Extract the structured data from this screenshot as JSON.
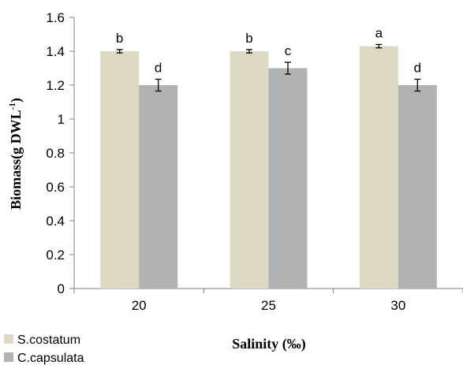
{
  "chart_data": {
    "type": "bar",
    "categories": [
      "20",
      "25",
      "30"
    ],
    "series": [
      {
        "name": "S.costatum",
        "color": "#ddd9c3",
        "values": [
          1.4,
          1.4,
          1.43
        ],
        "errors": [
          0.01,
          0.01,
          0.01
        ],
        "labels": [
          "b",
          "b",
          "a"
        ]
      },
      {
        "name": "C.capsulata",
        "color": "#b2b2b2",
        "values": [
          1.2,
          1.3,
          1.2
        ],
        "errors": [
          0.035,
          0.035,
          0.035
        ],
        "labels": [
          "d",
          "c",
          "d"
        ]
      }
    ],
    "ylim": [
      0,
      1.6
    ],
    "yticks": [
      "0",
      "0.2",
      "0.4",
      "0.6",
      "0.8",
      "1",
      "1.2",
      "1.4",
      "1.6"
    ],
    "xlabel": "Salinity (‰)",
    "ylabel_main": "Biomass(g DWL",
    "ylabel_sup": "-1",
    "ylabel_end": ")",
    "grid": false,
    "legend_position": "bottom-left"
  }
}
